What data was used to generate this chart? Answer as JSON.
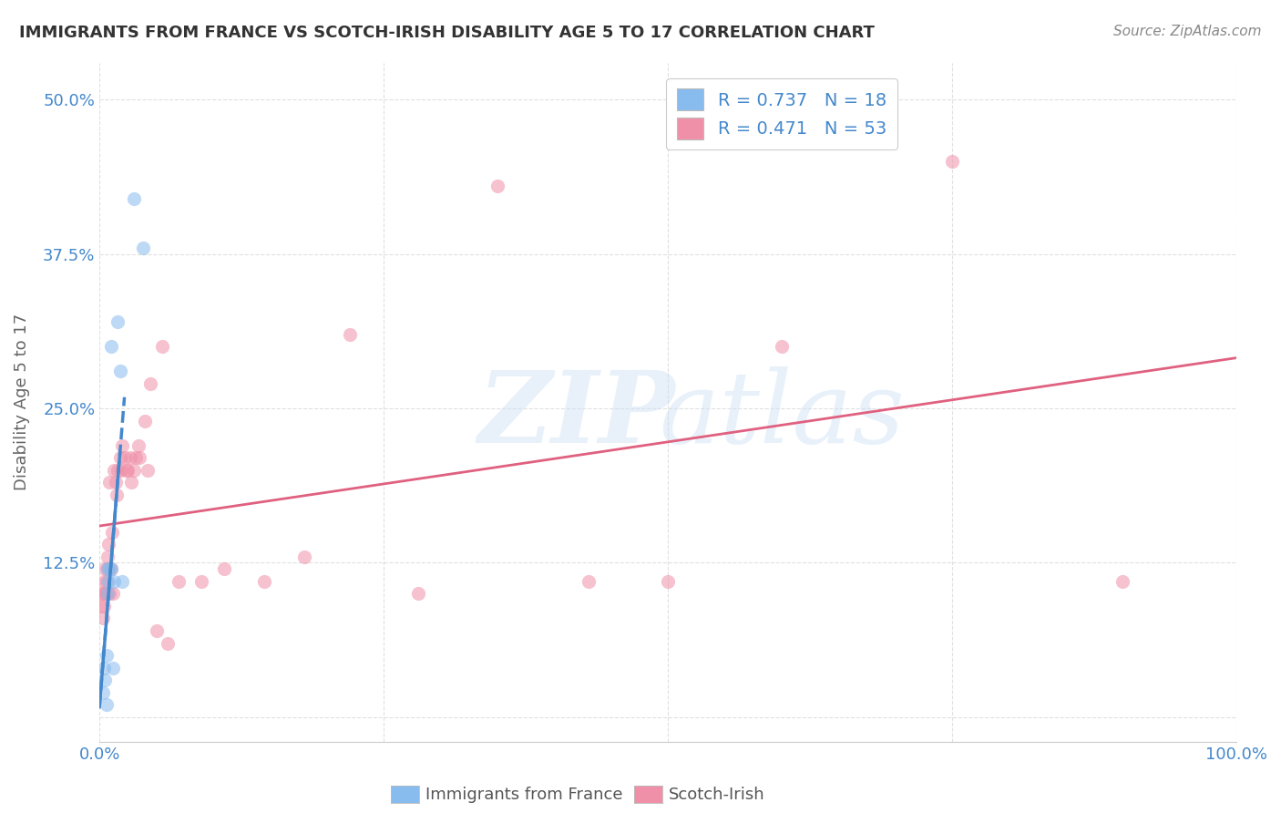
{
  "title": "IMMIGRANTS FROM FRANCE VS SCOTCH-IRISH DISABILITY AGE 5 TO 17 CORRELATION CHART",
  "source": "Source: ZipAtlas.com",
  "ylabel": "Disability Age 5 to 17",
  "ytick_labels": [
    "",
    "12.5%",
    "25.0%",
    "37.5%",
    "50.0%"
  ],
  "ytick_positions": [
    0.0,
    0.125,
    0.25,
    0.375,
    0.5
  ],
  "xlim": [
    0.0,
    1.0
  ],
  "ylim": [
    -0.02,
    0.53
  ],
  "legend_entries": [
    {
      "label": "R = 0.737   N = 18",
      "color": "#a8c4e0"
    },
    {
      "label": "R = 0.471   N = 53",
      "color": "#f4a8b8"
    }
  ],
  "france_x": [
    0.003,
    0.004,
    0.005,
    0.006,
    0.006,
    0.007,
    0.007,
    0.008,
    0.009,
    0.01,
    0.01,
    0.012,
    0.013,
    0.016,
    0.018,
    0.02,
    0.03,
    0.038
  ],
  "france_y": [
    0.02,
    0.04,
    0.03,
    0.01,
    0.05,
    0.1,
    0.12,
    0.11,
    0.12,
    0.12,
    0.3,
    0.04,
    0.11,
    0.32,
    0.28,
    0.11,
    0.42,
    0.38
  ],
  "scotch_x": [
    0.001,
    0.002,
    0.003,
    0.003,
    0.004,
    0.004,
    0.005,
    0.005,
    0.006,
    0.006,
    0.007,
    0.007,
    0.008,
    0.009,
    0.009,
    0.01,
    0.011,
    0.012,
    0.013,
    0.014,
    0.015,
    0.016,
    0.018,
    0.019,
    0.02,
    0.022,
    0.024,
    0.025,
    0.027,
    0.028,
    0.03,
    0.032,
    0.034,
    0.035,
    0.04,
    0.042,
    0.045,
    0.05,
    0.055,
    0.06,
    0.07,
    0.09,
    0.11,
    0.145,
    0.18,
    0.22,
    0.28,
    0.35,
    0.43,
    0.5,
    0.6,
    0.75,
    0.9
  ],
  "scotch_y": [
    0.09,
    0.1,
    0.08,
    0.1,
    0.09,
    0.11,
    0.1,
    0.12,
    0.1,
    0.11,
    0.12,
    0.13,
    0.14,
    0.19,
    0.1,
    0.12,
    0.15,
    0.1,
    0.2,
    0.19,
    0.18,
    0.2,
    0.21,
    0.2,
    0.22,
    0.21,
    0.2,
    0.2,
    0.21,
    0.19,
    0.2,
    0.21,
    0.22,
    0.21,
    0.24,
    0.2,
    0.27,
    0.07,
    0.3,
    0.06,
    0.11,
    0.11,
    0.12,
    0.11,
    0.13,
    0.31,
    0.1,
    0.43,
    0.11,
    0.11,
    0.3,
    0.45,
    0.11
  ],
  "france_line_color": "#4488cc",
  "scotch_line_color": "#e06080",
  "scatter_alpha": 0.55,
  "scatter_size": 120,
  "background_color": "#ffffff",
  "grid_color": "#dddddd",
  "title_color": "#333333",
  "axis_label_color": "#4488cc",
  "france_dot_color": "#88bbee",
  "scotch_dot_color": "#f090a8",
  "legend_bottom_france": "Immigrants from France",
  "legend_bottom_scotch": "Scotch-Irish"
}
